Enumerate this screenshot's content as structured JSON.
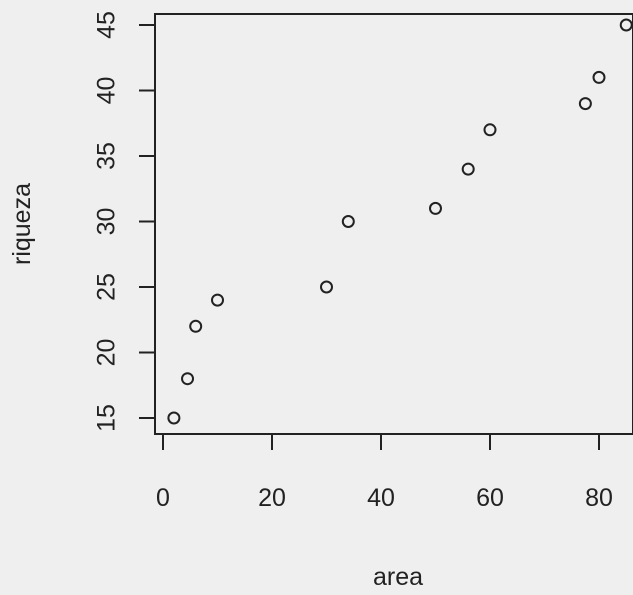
{
  "chart_data": {
    "type": "scatter",
    "xlabel": "area",
    "ylabel": "riqueza",
    "xlim": [
      0,
      85
    ],
    "ylim": [
      15,
      45
    ],
    "xticks": [
      0,
      20,
      40,
      60,
      80
    ],
    "yticks": [
      15,
      20,
      25,
      30,
      35,
      40,
      45
    ],
    "marker": "open-circle",
    "points": [
      {
        "x": 2,
        "y": 15
      },
      {
        "x": 4.5,
        "y": 18
      },
      {
        "x": 6,
        "y": 22
      },
      {
        "x": 10,
        "y": 24
      },
      {
        "x": 30,
        "y": 25
      },
      {
        "x": 34,
        "y": 30
      },
      {
        "x": 50,
        "y": 31
      },
      {
        "x": 56,
        "y": 34
      },
      {
        "x": 60,
        "y": 37
      },
      {
        "x": 77.5,
        "y": 39
      },
      {
        "x": 80,
        "y": 41
      },
      {
        "x": 85,
        "y": 45
      }
    ],
    "colors": {
      "background": "#efefef",
      "ink": "#222222"
    }
  }
}
